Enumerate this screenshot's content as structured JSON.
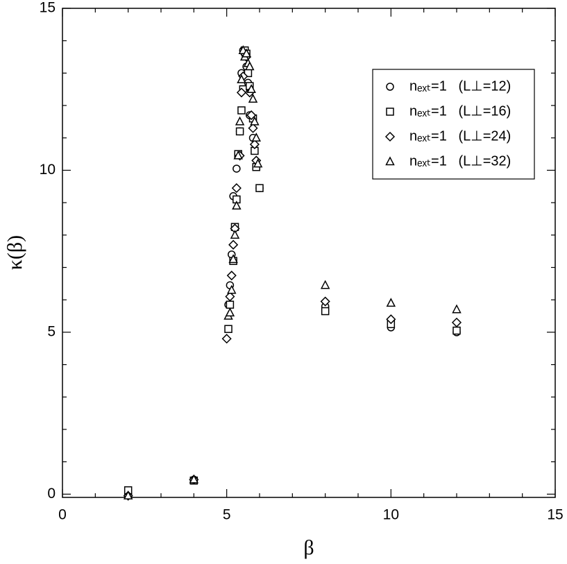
{
  "chart_data": {
    "type": "scatter",
    "x_label": "β",
    "y_label": "κ(β)",
    "xlim": [
      0,
      15
    ],
    "xticks": [
      0,
      5,
      10,
      15
    ],
    "ylim": [
      -0.1,
      15
    ],
    "yticks": [
      0,
      5,
      10,
      15
    ],
    "legend": "upper right",
    "series": [
      {
        "name": "nₑₓₜ=1   (L⊥=12)",
        "marker": "circle",
        "color": "#000000",
        "x": [
          2,
          4,
          5.05,
          5.1,
          5.15,
          5.2,
          5.3,
          5.4,
          5.45,
          5.5,
          5.55,
          5.6,
          5.65,
          5.7,
          5.8,
          5.9,
          6.0,
          8,
          10,
          12
        ],
        "values": [
          0.0,
          0.45,
          5.85,
          6.45,
          7.4,
          9.2,
          10.05,
          11.2,
          13.0,
          13.7,
          13.6,
          13.2,
          12.7,
          11.7,
          11.0,
          10.1,
          9.45,
          5.8,
          5.15,
          5.0
        ]
      },
      {
        "name": "nₑₓₜ=1   (L⊥=16)",
        "marker": "square",
        "color": "#000000",
        "x": [
          2,
          4,
          5.05,
          5.1,
          5.2,
          5.25,
          5.3,
          5.35,
          5.4,
          5.45,
          5.5,
          5.55,
          5.6,
          5.65,
          5.7,
          5.8,
          5.85,
          5.9,
          6.0,
          8,
          10,
          12
        ],
        "values": [
          0.12,
          0.42,
          5.1,
          5.85,
          7.2,
          8.25,
          9.1,
          10.5,
          11.2,
          11.85,
          12.5,
          13.7,
          13.6,
          13.0,
          12.6,
          11.6,
          10.6,
          10.1,
          9.45,
          5.65,
          5.25,
          5.05
        ]
      },
      {
        "name": "nₑₓₜ=1   (L⊥=24)",
        "marker": "diamond",
        "color": "#000000",
        "x": [
          2,
          4,
          5.0,
          5.1,
          5.15,
          5.2,
          5.25,
          5.3,
          5.4,
          5.45,
          5.5,
          5.55,
          5.6,
          5.7,
          5.75,
          5.8,
          5.85,
          5.9,
          8,
          10,
          12
        ],
        "values": [
          -0.05,
          0.45,
          4.8,
          6.1,
          6.75,
          7.7,
          8.2,
          9.45,
          10.45,
          12.4,
          12.9,
          13.6,
          13.5,
          12.4,
          11.7,
          11.3,
          10.8,
          10.3,
          5.95,
          5.4,
          5.3
        ]
      },
      {
        "name": "nₑₓₜ=1   (L⊥=32)",
        "marker": "triangle",
        "color": "#000000",
        "x": [
          2,
          4,
          5.05,
          5.1,
          5.15,
          5.2,
          5.25,
          5.3,
          5.35,
          5.4,
          5.45,
          5.5,
          5.55,
          5.6,
          5.65,
          5.7,
          5.75,
          5.8,
          5.85,
          5.9,
          5.95,
          8,
          10,
          12
        ],
        "values": [
          -0.05,
          0.45,
          5.5,
          5.6,
          6.3,
          7.25,
          8.0,
          8.9,
          10.45,
          11.5,
          12.8,
          13.7,
          13.5,
          13.6,
          13.3,
          13.2,
          12.5,
          12.2,
          11.5,
          11.0,
          10.2,
          6.45,
          5.9,
          5.7
        ]
      }
    ]
  }
}
